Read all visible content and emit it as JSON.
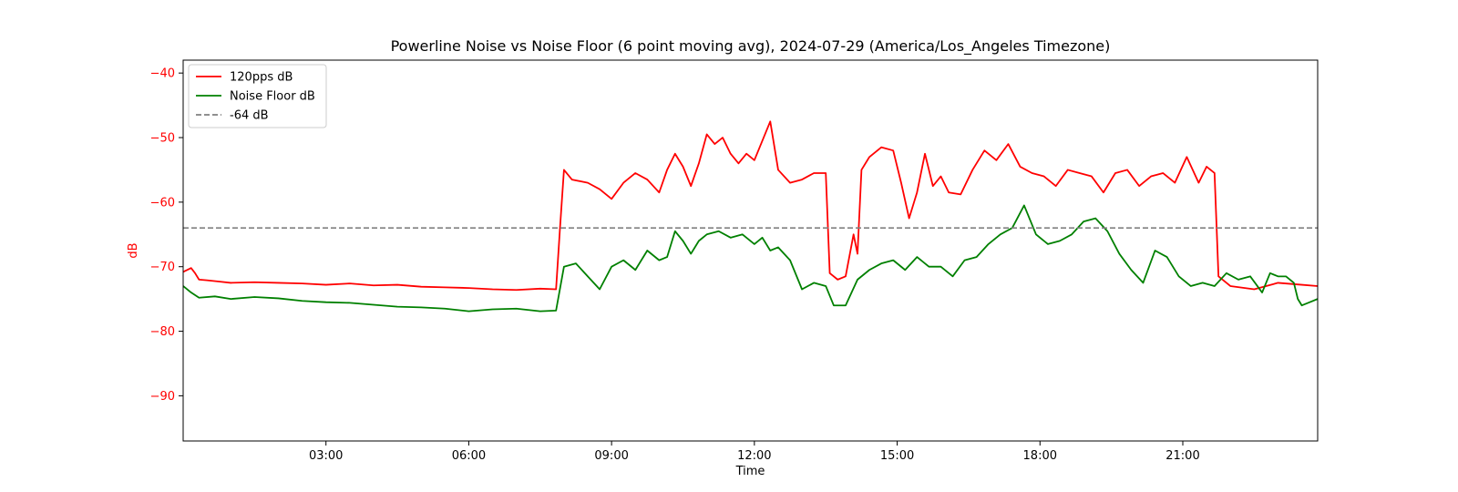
{
  "chart_data": {
    "type": "line",
    "title": "Powerline Noise vs Noise Floor (6 point moving avg), 2024-07-29 (America/Los_Angeles Timezone)",
    "xlabel": "Time",
    "ylabel": "dB",
    "ylabel_color": "#ff0000",
    "ytick_color": "#ff0000",
    "xlim": [
      "00:00",
      "23:50"
    ],
    "ylim": [
      -97,
      -38
    ],
    "xticks": [
      "03:00",
      "06:00",
      "09:00",
      "12:00",
      "15:00",
      "18:00",
      "21:00"
    ],
    "yticks": [
      -40,
      -50,
      -60,
      -70,
      -80,
      -90
    ],
    "grid": false,
    "legend_position": "upper left",
    "series": [
      {
        "name": "120pps dB",
        "color": "#ff0000",
        "style": "solid",
        "points": [
          [
            "00:00",
            -70.8
          ],
          [
            "00:10",
            -70.2
          ],
          [
            "00:15",
            -71.0
          ],
          [
            "00:20",
            -72.0
          ],
          [
            "00:30",
            -72.1
          ],
          [
            "00:45",
            -72.3
          ],
          [
            "01:00",
            -72.5
          ],
          [
            "01:30",
            -72.4
          ],
          [
            "02:00",
            -72.5
          ],
          [
            "02:30",
            -72.6
          ],
          [
            "03:00",
            -72.8
          ],
          [
            "03:30",
            -72.6
          ],
          [
            "04:00",
            -72.9
          ],
          [
            "04:30",
            -72.8
          ],
          [
            "05:00",
            -73.1
          ],
          [
            "05:30",
            -73.2
          ],
          [
            "06:00",
            -73.3
          ],
          [
            "06:30",
            -73.5
          ],
          [
            "07:00",
            -73.6
          ],
          [
            "07:30",
            -73.4
          ],
          [
            "07:50",
            -73.5
          ],
          [
            "07:55",
            -64.0
          ],
          [
            "08:00",
            -55.0
          ],
          [
            "08:10",
            -56.5
          ],
          [
            "08:30",
            -57.0
          ],
          [
            "08:45",
            -58.0
          ],
          [
            "09:00",
            -59.5
          ],
          [
            "09:15",
            -57.0
          ],
          [
            "09:30",
            -55.5
          ],
          [
            "09:45",
            -56.5
          ],
          [
            "10:00",
            -58.5
          ],
          [
            "10:10",
            -55.0
          ],
          [
            "10:20",
            -52.5
          ],
          [
            "10:30",
            -54.5
          ],
          [
            "10:40",
            -57.5
          ],
          [
            "10:50",
            -54.0
          ],
          [
            "11:00",
            -49.5
          ],
          [
            "11:10",
            -51.0
          ],
          [
            "11:20",
            -50.0
          ],
          [
            "11:30",
            -52.5
          ],
          [
            "11:40",
            -54.0
          ],
          [
            "11:50",
            -52.5
          ],
          [
            "12:00",
            -53.5
          ],
          [
            "12:10",
            -50.5
          ],
          [
            "12:20",
            -47.5
          ],
          [
            "12:30",
            -55.0
          ],
          [
            "12:45",
            -57.0
          ],
          [
            "13:00",
            -56.5
          ],
          [
            "13:15",
            -55.5
          ],
          [
            "13:30",
            -55.5
          ],
          [
            "13:35",
            -71.0
          ],
          [
            "13:45",
            -72.0
          ],
          [
            "13:55",
            -71.5
          ],
          [
            "14:05",
            -65.0
          ],
          [
            "14:10",
            -68.0
          ],
          [
            "14:15",
            -55.0
          ],
          [
            "14:25",
            -53.0
          ],
          [
            "14:40",
            -51.5
          ],
          [
            "14:55",
            -52.0
          ],
          [
            "15:05",
            -57.0
          ],
          [
            "15:15",
            -62.5
          ],
          [
            "15:25",
            -58.5
          ],
          [
            "15:35",
            -52.5
          ],
          [
            "15:45",
            -57.5
          ],
          [
            "15:55",
            -56.0
          ],
          [
            "16:05",
            -58.5
          ],
          [
            "16:20",
            -58.8
          ],
          [
            "16:35",
            -55.0
          ],
          [
            "16:50",
            -52.0
          ],
          [
            "17:05",
            -53.5
          ],
          [
            "17:20",
            -51.0
          ],
          [
            "17:35",
            -54.5
          ],
          [
            "17:50",
            -55.5
          ],
          [
            "18:05",
            -56.0
          ],
          [
            "18:20",
            -57.5
          ],
          [
            "18:35",
            -55.0
          ],
          [
            "18:50",
            -55.5
          ],
          [
            "19:05",
            -56.0
          ],
          [
            "19:20",
            -58.5
          ],
          [
            "19:35",
            -55.5
          ],
          [
            "19:50",
            -55.0
          ],
          [
            "20:05",
            -57.5
          ],
          [
            "20:20",
            -56.0
          ],
          [
            "20:35",
            -55.5
          ],
          [
            "20:50",
            -57.0
          ],
          [
            "21:05",
            -53.0
          ],
          [
            "21:20",
            -57.0
          ],
          [
            "21:30",
            -54.5
          ],
          [
            "21:40",
            -55.5
          ],
          [
            "21:45",
            -71.5
          ],
          [
            "22:00",
            -73.0
          ],
          [
            "22:30",
            -73.5
          ],
          [
            "23:00",
            -72.5
          ],
          [
            "23:30",
            -72.8
          ],
          [
            "23:50",
            -73.0
          ]
        ]
      },
      {
        "name": "Noise Floor dB",
        "color": "#008000",
        "style": "solid",
        "points": [
          [
            "00:00",
            -73.0
          ],
          [
            "00:10",
            -74.0
          ],
          [
            "00:20",
            -74.8
          ],
          [
            "00:40",
            -74.6
          ],
          [
            "01:00",
            -75.0
          ],
          [
            "01:30",
            -74.7
          ],
          [
            "02:00",
            -74.9
          ],
          [
            "02:30",
            -75.3
          ],
          [
            "03:00",
            -75.5
          ],
          [
            "03:30",
            -75.6
          ],
          [
            "04:00",
            -75.9
          ],
          [
            "04:30",
            -76.2
          ],
          [
            "05:00",
            -76.3
          ],
          [
            "05:30",
            -76.5
          ],
          [
            "06:00",
            -76.9
          ],
          [
            "06:30",
            -76.6
          ],
          [
            "07:00",
            -76.5
          ],
          [
            "07:30",
            -76.9
          ],
          [
            "07:50",
            -76.8
          ],
          [
            "08:00",
            -70.0
          ],
          [
            "08:15",
            -69.5
          ],
          [
            "08:30",
            -71.5
          ],
          [
            "08:45",
            -73.5
          ],
          [
            "09:00",
            -70.0
          ],
          [
            "09:15",
            -69.0
          ],
          [
            "09:30",
            -70.5
          ],
          [
            "09:45",
            -67.5
          ],
          [
            "10:00",
            -69.0
          ],
          [
            "10:10",
            -68.5
          ],
          [
            "10:20",
            -64.5
          ],
          [
            "10:30",
            -66.0
          ],
          [
            "10:40",
            -68.0
          ],
          [
            "10:50",
            -66.0
          ],
          [
            "11:00",
            -65.0
          ],
          [
            "11:15",
            -64.5
          ],
          [
            "11:30",
            -65.5
          ],
          [
            "11:45",
            -65.0
          ],
          [
            "12:00",
            -66.5
          ],
          [
            "12:10",
            -65.5
          ],
          [
            "12:20",
            -67.5
          ],
          [
            "12:30",
            -67.0
          ],
          [
            "12:45",
            -69.0
          ],
          [
            "13:00",
            -73.5
          ],
          [
            "13:15",
            -72.5
          ],
          [
            "13:30",
            -73.0
          ],
          [
            "13:40",
            -76.0
          ],
          [
            "13:55",
            -76.0
          ],
          [
            "14:10",
            -72.0
          ],
          [
            "14:25",
            -70.5
          ],
          [
            "14:40",
            -69.5
          ],
          [
            "14:55",
            -69.0
          ],
          [
            "15:10",
            -70.5
          ],
          [
            "15:25",
            -68.5
          ],
          [
            "15:40",
            -70.0
          ],
          [
            "15:55",
            -70.0
          ],
          [
            "16:10",
            -71.5
          ],
          [
            "16:25",
            -69.0
          ],
          [
            "16:40",
            -68.5
          ],
          [
            "16:55",
            -66.5
          ],
          [
            "17:10",
            -65.0
          ],
          [
            "17:25",
            -64.0
          ],
          [
            "17:40",
            -60.5
          ],
          [
            "17:55",
            -65.0
          ],
          [
            "18:10",
            -66.5
          ],
          [
            "18:25",
            -66.0
          ],
          [
            "18:40",
            -65.0
          ],
          [
            "18:55",
            -63.0
          ],
          [
            "19:10",
            -62.5
          ],
          [
            "19:25",
            -64.5
          ],
          [
            "19:40",
            -68.0
          ],
          [
            "19:55",
            -70.5
          ],
          [
            "20:10",
            -72.5
          ],
          [
            "20:25",
            -67.5
          ],
          [
            "20:40",
            -68.5
          ],
          [
            "20:55",
            -71.5
          ],
          [
            "21:10",
            -73.0
          ],
          [
            "21:25",
            -72.5
          ],
          [
            "21:40",
            -73.0
          ],
          [
            "21:55",
            -71.0
          ],
          [
            "22:10",
            -72.0
          ],
          [
            "22:25",
            -71.5
          ],
          [
            "22:40",
            -74.0
          ],
          [
            "22:50",
            -71.0
          ],
          [
            "23:00",
            -71.5
          ],
          [
            "23:10",
            -71.5
          ],
          [
            "23:20",
            -72.5
          ],
          [
            "23:25",
            -75.0
          ],
          [
            "23:30",
            -76.0
          ],
          [
            "23:40",
            -75.5
          ],
          [
            "23:50",
            -75.0
          ]
        ]
      },
      {
        "name": "-64 dB",
        "color": "#808080",
        "style": "dashed",
        "points": [
          [
            "00:00",
            -64
          ],
          [
            "23:50",
            -64
          ]
        ]
      }
    ]
  }
}
